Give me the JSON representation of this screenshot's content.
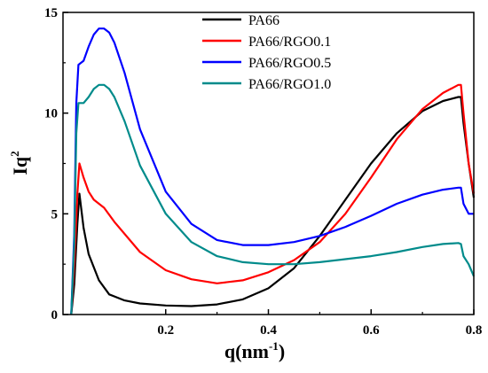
{
  "chart_data": {
    "type": "line",
    "xlabel": "q(nm",
    "xlabel_sup": "-1",
    "xlabel_tail": ")",
    "ylabel": "Iq",
    "ylabel_sup": "2",
    "xlim": [
      0.0,
      0.8
    ],
    "ylim": [
      0,
      15
    ],
    "x_ticks": [
      "0.2",
      "0.4",
      "0.6",
      "0.8"
    ],
    "y_ticks": [
      "0",
      "5",
      "10",
      "15"
    ],
    "grid": false,
    "legend_position": "top-right",
    "series": [
      {
        "name": "PA66",
        "color": "#000000",
        "points": [
          [
            0.016,
            0
          ],
          [
            0.022,
            1.5
          ],
          [
            0.028,
            4.5
          ],
          [
            0.032,
            6.0
          ],
          [
            0.04,
            4.3
          ],
          [
            0.05,
            3.0
          ],
          [
            0.07,
            1.7
          ],
          [
            0.09,
            1.0
          ],
          [
            0.12,
            0.7
          ],
          [
            0.15,
            0.55
          ],
          [
            0.2,
            0.45
          ],
          [
            0.25,
            0.42
          ],
          [
            0.3,
            0.5
          ],
          [
            0.35,
            0.75
          ],
          [
            0.4,
            1.3
          ],
          [
            0.45,
            2.3
          ],
          [
            0.5,
            3.9
          ],
          [
            0.55,
            5.7
          ],
          [
            0.6,
            7.5
          ],
          [
            0.65,
            9.0
          ],
          [
            0.7,
            10.1
          ],
          [
            0.74,
            10.6
          ],
          [
            0.77,
            10.8
          ],
          [
            0.775,
            10.8
          ],
          [
            0.78,
            9.5
          ],
          [
            0.79,
            7.5
          ],
          [
            0.8,
            5.8
          ]
        ]
      },
      {
        "name": "PA66/RGO0.1",
        "color": "#ff0000",
        "points": [
          [
            0.016,
            0
          ],
          [
            0.022,
            2.5
          ],
          [
            0.028,
            6.0
          ],
          [
            0.032,
            7.5
          ],
          [
            0.04,
            6.8
          ],
          [
            0.05,
            6.1
          ],
          [
            0.06,
            5.7
          ],
          [
            0.08,
            5.3
          ],
          [
            0.1,
            4.6
          ],
          [
            0.15,
            3.1
          ],
          [
            0.2,
            2.2
          ],
          [
            0.25,
            1.75
          ],
          [
            0.3,
            1.55
          ],
          [
            0.35,
            1.7
          ],
          [
            0.4,
            2.1
          ],
          [
            0.45,
            2.7
          ],
          [
            0.5,
            3.6
          ],
          [
            0.55,
            5.0
          ],
          [
            0.6,
            6.8
          ],
          [
            0.65,
            8.7
          ],
          [
            0.7,
            10.2
          ],
          [
            0.74,
            11.0
          ],
          [
            0.77,
            11.4
          ],
          [
            0.775,
            11.4
          ],
          [
            0.78,
            10.0
          ],
          [
            0.79,
            7.5
          ],
          [
            0.8,
            6.0
          ]
        ]
      },
      {
        "name": "PA66/RGO0.5",
        "color": "#0000ff",
        "points": [
          [
            0.016,
            0
          ],
          [
            0.022,
            4.0
          ],
          [
            0.026,
            10.5
          ],
          [
            0.03,
            12.4
          ],
          [
            0.04,
            12.6
          ],
          [
            0.05,
            13.3
          ],
          [
            0.06,
            13.9
          ],
          [
            0.07,
            14.2
          ],
          [
            0.08,
            14.2
          ],
          [
            0.09,
            14.0
          ],
          [
            0.1,
            13.5
          ],
          [
            0.12,
            12.0
          ],
          [
            0.15,
            9.2
          ],
          [
            0.2,
            6.1
          ],
          [
            0.25,
            4.5
          ],
          [
            0.3,
            3.7
          ],
          [
            0.35,
            3.45
          ],
          [
            0.4,
            3.45
          ],
          [
            0.45,
            3.6
          ],
          [
            0.5,
            3.9
          ],
          [
            0.55,
            4.35
          ],
          [
            0.6,
            4.9
          ],
          [
            0.65,
            5.5
          ],
          [
            0.7,
            5.95
          ],
          [
            0.74,
            6.2
          ],
          [
            0.77,
            6.3
          ],
          [
            0.775,
            6.3
          ],
          [
            0.78,
            5.5
          ],
          [
            0.79,
            5.0
          ],
          [
            0.8,
            5.0
          ]
        ]
      },
      {
        "name": "PA66/RGO1.0",
        "color": "#008b8b",
        "points": [
          [
            0.016,
            0
          ],
          [
            0.022,
            3.5
          ],
          [
            0.026,
            9.0
          ],
          [
            0.03,
            10.5
          ],
          [
            0.04,
            10.5
          ],
          [
            0.05,
            10.8
          ],
          [
            0.06,
            11.2
          ],
          [
            0.07,
            11.4
          ],
          [
            0.08,
            11.4
          ],
          [
            0.09,
            11.2
          ],
          [
            0.1,
            10.8
          ],
          [
            0.12,
            9.6
          ],
          [
            0.15,
            7.4
          ],
          [
            0.2,
            5.0
          ],
          [
            0.25,
            3.6
          ],
          [
            0.3,
            2.9
          ],
          [
            0.35,
            2.6
          ],
          [
            0.4,
            2.5
          ],
          [
            0.45,
            2.5
          ],
          [
            0.5,
            2.6
          ],
          [
            0.55,
            2.75
          ],
          [
            0.6,
            2.9
          ],
          [
            0.65,
            3.1
          ],
          [
            0.7,
            3.35
          ],
          [
            0.74,
            3.5
          ],
          [
            0.77,
            3.55
          ],
          [
            0.775,
            3.5
          ],
          [
            0.78,
            2.9
          ],
          [
            0.79,
            2.5
          ],
          [
            0.8,
            1.9
          ]
        ]
      }
    ]
  }
}
